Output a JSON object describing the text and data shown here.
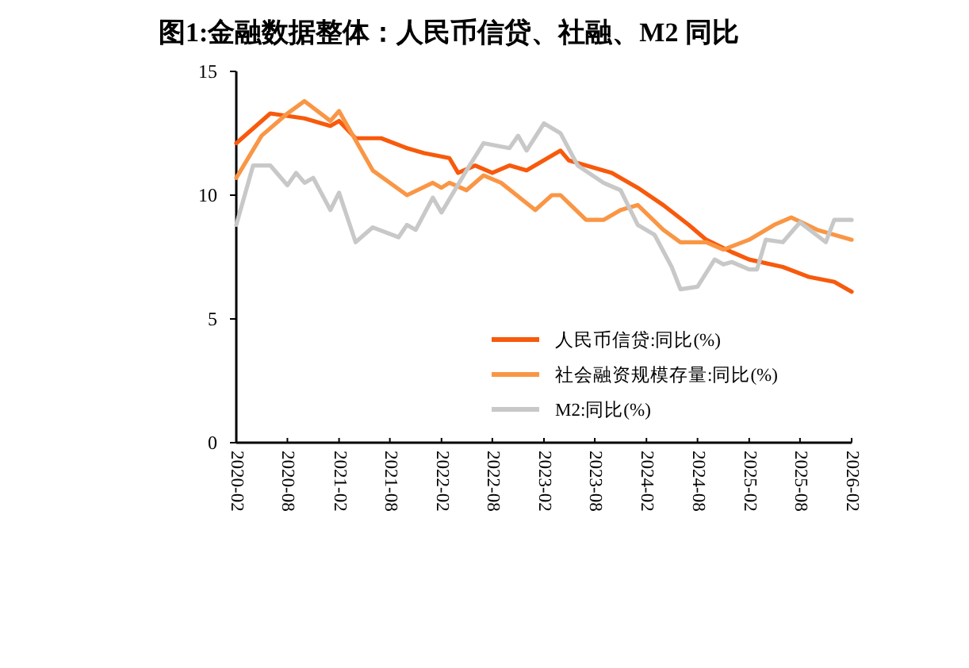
{
  "chart_data": {
    "type": "line",
    "title": "图1:金融数据整体：人民币信贷、社融、M2 同比",
    "xlim": [
      "2020-02",
      "2026-02"
    ],
    "xticks": [
      "2020-02",
      "2020-08",
      "2021-02",
      "2021-08",
      "2022-02",
      "2022-08",
      "2023-02",
      "2023-08",
      "2024-02",
      "2024-08",
      "2025-02",
      "2025-08",
      "2026-02"
    ],
    "ylim": [
      0,
      15
    ],
    "yticks": [
      0,
      5,
      10,
      15
    ],
    "legend": "bottom right",
    "series": [
      {
        "name": "人民币信贷:同比(%)",
        "color": "#f75a0c",
        "x": [
          "2020-02",
          "2020-06",
          "2020-10",
          "2021-01",
          "2021-02",
          "2021-04",
          "2021-07",
          "2021-10",
          "2021-12",
          "2022-03",
          "2022-04",
          "2022-06",
          "2022-08",
          "2022-10",
          "2022-12",
          "2023-04",
          "2023-05",
          "2023-08",
          "2023-10",
          "2024-01",
          "2024-04",
          "2024-07",
          "2024-09",
          "2024-12",
          "2025-02",
          "2025-06",
          "2025-09",
          "2025-12",
          "2026-02"
        ],
        "values": [
          12.1,
          13.3,
          13.1,
          12.8,
          13.0,
          12.3,
          12.3,
          11.9,
          11.7,
          11.5,
          10.9,
          11.2,
          10.9,
          11.2,
          11.0,
          11.8,
          11.4,
          11.1,
          10.9,
          10.3,
          9.6,
          8.8,
          8.2,
          7.7,
          7.4,
          7.1,
          6.7,
          6.5,
          6.1
        ]
      },
      {
        "name": "社会融资规模存量:同比(%)",
        "color": "#f99645",
        "x": [
          "2020-02",
          "2020-05",
          "2020-08",
          "2020-10",
          "2021-01",
          "2021-02",
          "2021-06",
          "2021-10",
          "2022-01",
          "2022-02",
          "2022-03",
          "2022-05",
          "2022-07",
          "2022-09",
          "2023-01",
          "2023-03",
          "2023-04",
          "2023-07",
          "2023-09",
          "2023-11",
          "2024-01",
          "2024-04",
          "2024-06",
          "2024-09",
          "2024-11",
          "2025-02",
          "2025-05",
          "2025-07",
          "2025-10",
          "2026-02"
        ],
        "values": [
          10.7,
          12.4,
          13.3,
          13.8,
          13.0,
          13.4,
          11.0,
          10.0,
          10.5,
          10.3,
          10.5,
          10.2,
          10.8,
          10.5,
          9.4,
          10.0,
          10.0,
          9.0,
          9.0,
          9.4,
          9.6,
          8.6,
          8.1,
          8.1,
          7.8,
          8.2,
          8.8,
          9.1,
          8.6,
          8.2
        ]
      },
      {
        "name": "M2:同比(%)",
        "color": "#c8c8c8",
        "x": [
          "2020-02",
          "2020-04",
          "2020-06",
          "2020-08",
          "2020-09",
          "2020-10",
          "2020-11",
          "2021-01",
          "2021-02",
          "2021-04",
          "2021-06",
          "2021-09",
          "2021-10",
          "2021-11",
          "2022-01",
          "2022-02",
          "2022-05",
          "2022-07",
          "2022-10",
          "2022-11",
          "2022-12",
          "2023-02",
          "2023-04",
          "2023-06",
          "2023-09",
          "2023-11",
          "2024-01",
          "2024-03",
          "2024-05",
          "2024-06",
          "2024-08",
          "2024-10",
          "2024-11",
          "2024-12",
          "2025-02",
          "2025-03",
          "2025-04",
          "2025-06",
          "2025-08",
          "2025-11",
          "2025-12",
          "2026-02"
        ],
        "values": [
          8.8,
          11.2,
          11.2,
          10.4,
          10.9,
          10.5,
          10.7,
          9.4,
          10.1,
          8.1,
          8.7,
          8.3,
          8.8,
          8.6,
          9.9,
          9.3,
          11.0,
          12.1,
          11.9,
          12.4,
          11.8,
          12.9,
          12.5,
          11.2,
          10.5,
          10.2,
          8.8,
          8.4,
          7.1,
          6.2,
          6.3,
          7.4,
          7.2,
          7.3,
          7.0,
          7.0,
          8.2,
          8.1,
          8.9,
          8.1,
          9.0,
          9.0
        ]
      }
    ]
  }
}
